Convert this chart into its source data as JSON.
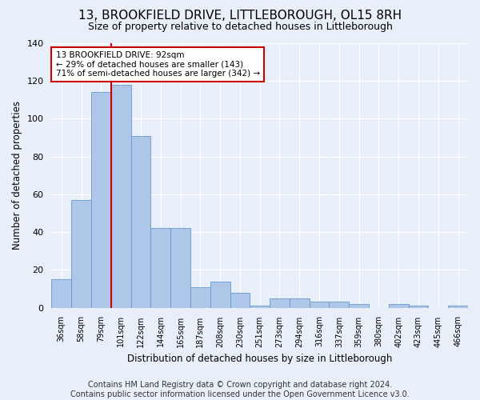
{
  "title": "13, BROOKFIELD DRIVE, LITTLEBOROUGH, OL15 8RH",
  "subtitle": "Size of property relative to detached houses in Littleborough",
  "xlabel": "Distribution of detached houses by size in Littleborough",
  "ylabel": "Number of detached properties",
  "categories": [
    "36sqm",
    "58sqm",
    "79sqm",
    "101sqm",
    "122sqm",
    "144sqm",
    "165sqm",
    "187sqm",
    "208sqm",
    "230sqm",
    "251sqm",
    "273sqm",
    "294sqm",
    "316sqm",
    "337sqm",
    "359sqm",
    "380sqm",
    "402sqm",
    "423sqm",
    "445sqm",
    "466sqm"
  ],
  "values": [
    15,
    57,
    114,
    118,
    91,
    42,
    42,
    11,
    14,
    8,
    1,
    5,
    5,
    3,
    3,
    2,
    0,
    2,
    1,
    0,
    1
  ],
  "bar_color": "#aec6e8",
  "bar_edge_color": "#6699cc",
  "annotation_text": "13 BROOKFIELD DRIVE: 92sqm\n← 29% of detached houses are smaller (143)\n71% of semi-detached houses are larger (342) →",
  "annotation_box_color": "#ffffff",
  "annotation_box_edge": "#cc0000",
  "vline_color": "#cc0000",
  "ylim": [
    0,
    140
  ],
  "yticks": [
    0,
    20,
    40,
    60,
    80,
    100,
    120,
    140
  ],
  "footer": "Contains HM Land Registry data © Crown copyright and database right 2024.\nContains public sector information licensed under the Open Government Licence v3.0.",
  "bg_color": "#e8eff8",
  "plot_bg_color": "#e8eff8",
  "title_fontsize": 11,
  "subtitle_fontsize": 9,
  "xlabel_fontsize": 8.5,
  "ylabel_fontsize": 8.5,
  "footer_fontsize": 7,
  "grid_color": "#ffffff",
  "vline_x_bar_index": 2.5
}
